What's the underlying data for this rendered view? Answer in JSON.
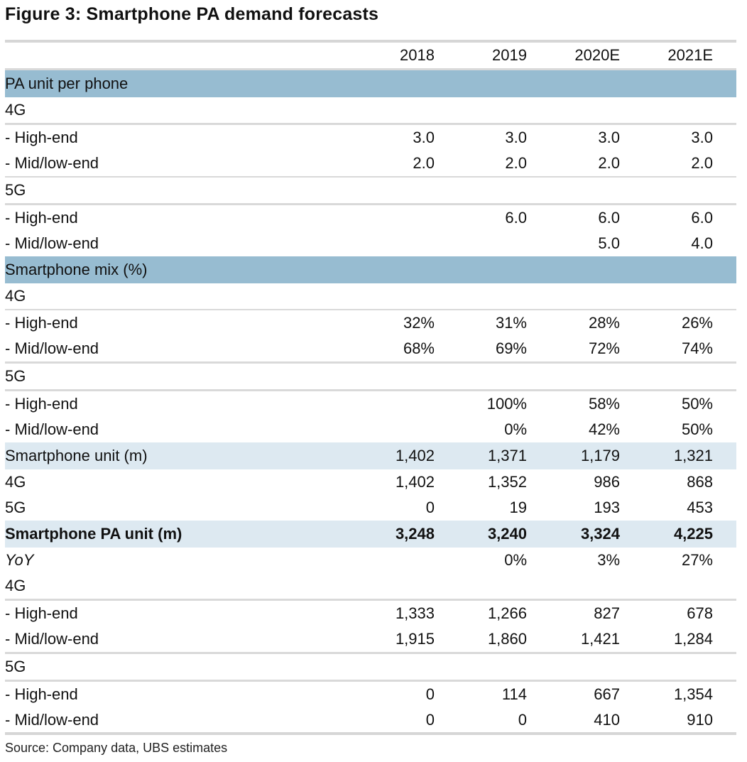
{
  "title": "Figure 3: Smartphone PA demand forecasts",
  "source": "Source: Company data, UBS estimates",
  "chart_data": {
    "type": "table",
    "columns": [
      "2018",
      "2019",
      "2020E",
      "2021E"
    ],
    "rows": [
      {
        "label": "PA unit per phone",
        "style": "section",
        "values": [
          "",
          "",
          "",
          ""
        ]
      },
      {
        "label": "4G",
        "style": "group",
        "values": [
          "",
          "",
          "",
          ""
        ]
      },
      {
        "label": "- High-end",
        "style": "item",
        "values": [
          "3.0",
          "3.0",
          "3.0",
          "3.0"
        ]
      },
      {
        "label": "- Mid/low-end",
        "style": "item",
        "values": [
          "2.0",
          "2.0",
          "2.0",
          "2.0"
        ]
      },
      {
        "label": "5G",
        "style": "group",
        "values": [
          "",
          "",
          "",
          ""
        ]
      },
      {
        "label": "- High-end",
        "style": "item",
        "values": [
          "",
          "6.0",
          "6.0",
          "6.0"
        ]
      },
      {
        "label": "- Mid/low-end",
        "style": "item",
        "values": [
          "",
          "",
          "5.0",
          "4.0"
        ]
      },
      {
        "label": "Smartphone mix (%)",
        "style": "section",
        "values": [
          "",
          "",
          "",
          ""
        ]
      },
      {
        "label": "4G",
        "style": "group",
        "values": [
          "",
          "",
          "",
          ""
        ]
      },
      {
        "label": "- High-end",
        "style": "item",
        "values": [
          "32%",
          "31%",
          "28%",
          "26%"
        ]
      },
      {
        "label": "- Mid/low-end",
        "style": "item",
        "values": [
          "68%",
          "69%",
          "72%",
          "74%"
        ]
      },
      {
        "label": "5G",
        "style": "group",
        "values": [
          "",
          "",
          "",
          ""
        ]
      },
      {
        "label": "- High-end",
        "style": "item",
        "values": [
          "",
          "100%",
          "58%",
          "50%"
        ]
      },
      {
        "label": "- Mid/low-end",
        "style": "item",
        "values": [
          "",
          "0%",
          "42%",
          "50%"
        ]
      },
      {
        "label": "Smartphone unit (m)",
        "style": "subsection",
        "values": [
          "1,402",
          "1,371",
          "1,179",
          "1,321"
        ]
      },
      {
        "label": "4G",
        "style": "item",
        "values": [
          "1,402",
          "1,352",
          "986",
          "868"
        ]
      },
      {
        "label": "5G",
        "style": "item",
        "values": [
          "0",
          "19",
          "193",
          "453"
        ]
      },
      {
        "label": "Smartphone PA unit (m)",
        "style": "subsection-bold",
        "values": [
          "3,248",
          "3,240",
          "3,324",
          "4,225"
        ]
      },
      {
        "label": "YoY",
        "style": "italic",
        "values": [
          "",
          "0%",
          "3%",
          "27%"
        ]
      },
      {
        "label": "4G",
        "style": "group",
        "values": [
          "",
          "",
          "",
          ""
        ]
      },
      {
        "label": "- High-end",
        "style": "item",
        "values": [
          "1,333",
          "1,266",
          "827",
          "678"
        ]
      },
      {
        "label": "- Mid/low-end",
        "style": "item",
        "values": [
          "1,915",
          "1,860",
          "1,421",
          "1,284"
        ]
      },
      {
        "label": "5G",
        "style": "group",
        "values": [
          "",
          "",
          "",
          ""
        ]
      },
      {
        "label": "- High-end",
        "style": "item",
        "values": [
          "0",
          "114",
          "667",
          "1,354"
        ]
      },
      {
        "label": "- Mid/low-end",
        "style": "item",
        "values": [
          "0",
          "0",
          "410",
          "910"
        ]
      }
    ]
  },
  "colors": {
    "section_band": "#97bcd1",
    "subsection_band": "#dde9f1",
    "rule": "#d9d9d9"
  }
}
